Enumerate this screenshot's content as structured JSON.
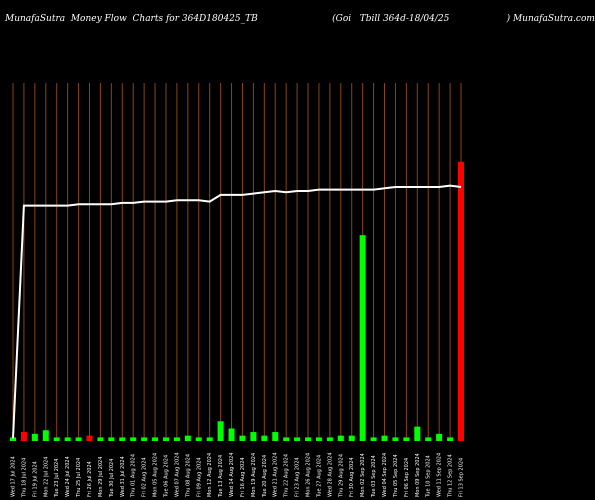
{
  "title": "MunafaSutra  Money Flow  Charts for 364D180425_TB                          (Goi   Tbill 364d-18/04/25                    ) MunafaSutra.com",
  "chart_data": {
    "type": "bar+line",
    "categories": [
      "Wed 17 Jul 2024",
      "Thu 18 Jul 2024",
      "Fri 19 Jul 2024",
      "Mon 22 Jul 2024",
      "Tue 23 Jul 2024",
      "Wed 24 Jul 2024",
      "Thu 25 Jul 2024",
      "Fri 26 Jul 2024",
      "Mon 29 Jul 2024",
      "Tue 30 Jul 2024",
      "Wed 31 Jul 2024",
      "Thu 01 Aug 2024",
      "Fri 02 Aug 2024",
      "Mon 05 Aug 2024",
      "Tue 06 Aug 2024",
      "Wed 07 Aug 2024",
      "Thu 08 Aug 2024",
      "Fri 09 Aug 2024",
      "Mon 12 Aug 2024",
      "Tue 13 Aug 2024",
      "Wed 14 Aug 2024",
      "Fri 16 Aug 2024",
      "Mon 19 Aug 2024",
      "Tue 20 Aug 2024",
      "Wed 21 Aug 2024",
      "Thu 22 Aug 2024",
      "Fri 23 Aug 2024",
      "Mon 26 Aug 2024",
      "Tue 27 Aug 2024",
      "Wed 28 Aug 2024",
      "Thu 29 Aug 2024",
      "Fri 30 Aug 2024",
      "Mon 02 Sep 2024",
      "Tue 03 Sep 2024",
      "Wed 04 Sep 2024",
      "Thu 05 Sep 2024",
      "Fri 06 Sep 2024",
      "Mon 09 Sep 2024",
      "Tue 10 Sep 2024",
      "Wed 11 Sep 2024",
      "Thu 12 Sep 2024",
      "Fri 13 Sep 2024"
    ],
    "bars": [
      {
        "value": 2,
        "color": "#00ff00"
      },
      {
        "value": 5,
        "color": "#ff0000"
      },
      {
        "value": 4,
        "color": "#00ff00"
      },
      {
        "value": 6,
        "color": "#00ff00"
      },
      {
        "value": 2,
        "color": "#00ff00"
      },
      {
        "value": 2,
        "color": "#00ff00"
      },
      {
        "value": 2,
        "color": "#00ff00"
      },
      {
        "value": 3,
        "color": "#ff0000"
      },
      {
        "value": 2,
        "color": "#00ff00"
      },
      {
        "value": 2,
        "color": "#00ff00"
      },
      {
        "value": 2,
        "color": "#00ff00"
      },
      {
        "value": 2,
        "color": "#00ff00"
      },
      {
        "value": 2,
        "color": "#00ff00"
      },
      {
        "value": 2,
        "color": "#00ff00"
      },
      {
        "value": 2,
        "color": "#00ff00"
      },
      {
        "value": 2,
        "color": "#00ff00"
      },
      {
        "value": 3,
        "color": "#00ff00"
      },
      {
        "value": 2,
        "color": "#00ff00"
      },
      {
        "value": 2,
        "color": "#00ff00"
      },
      {
        "value": 11,
        "color": "#00ff00"
      },
      {
        "value": 7,
        "color": "#00ff00"
      },
      {
        "value": 3,
        "color": "#00ff00"
      },
      {
        "value": 5,
        "color": "#00ff00"
      },
      {
        "value": 3,
        "color": "#00ff00"
      },
      {
        "value": 5,
        "color": "#00ff00"
      },
      {
        "value": 2,
        "color": "#00ff00"
      },
      {
        "value": 2,
        "color": "#00ff00"
      },
      {
        "value": 2,
        "color": "#00ff00"
      },
      {
        "value": 2,
        "color": "#00ff00"
      },
      {
        "value": 2,
        "color": "#00ff00"
      },
      {
        "value": 3,
        "color": "#00ff00"
      },
      {
        "value": 3,
        "color": "#00ff00"
      },
      {
        "value": 115,
        "color": "#00ff00"
      },
      {
        "value": 2,
        "color": "#00ff00"
      },
      {
        "value": 3,
        "color": "#00ff00"
      },
      {
        "value": 2,
        "color": "#00ff00"
      },
      {
        "value": 2,
        "color": "#00ff00"
      },
      {
        "value": 8,
        "color": "#00ff00"
      },
      {
        "value": 2,
        "color": "#00ff00"
      },
      {
        "value": 4,
        "color": "#00ff00"
      },
      {
        "value": 2,
        "color": "#00ff00"
      },
      {
        "value": 156,
        "color": "#ff0000"
      }
    ],
    "bar_max": 200,
    "line": {
      "color": "#ffffff",
      "values": [
        2,
        177,
        177,
        177,
        177,
        177,
        178,
        178,
        178,
        178,
        179,
        179,
        180,
        180,
        180,
        181,
        181,
        181,
        180,
        185,
        185,
        185,
        186,
        187,
        188,
        187,
        188,
        188,
        189,
        189,
        189,
        189,
        189,
        189,
        190,
        191,
        191,
        191,
        191,
        191,
        192,
        191
      ],
      "max": 200
    },
    "gridline_color": "#8b4513"
  }
}
